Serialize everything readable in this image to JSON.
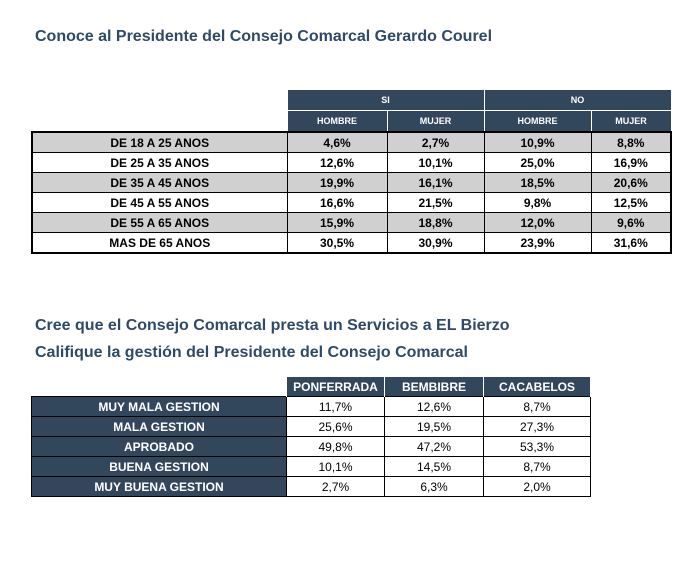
{
  "title1": "Conoce al Presidente del Consejo Comarcal Gerardo Courel",
  "table1": {
    "group_headers": [
      "SI",
      "NO"
    ],
    "sub_headers": [
      "HOMBRE",
      "MUJER",
      "HOMBRE",
      "MUJER"
    ],
    "rows": [
      {
        "label": "DE 18 A 25 ANOS",
        "values": [
          "4,6%",
          "2,7%",
          "10,9%",
          "8,8%"
        ]
      },
      {
        "label": "DE 25 A 35 ANOS",
        "values": [
          "12,6%",
          "10,1%",
          "25,0%",
          "16,9%"
        ]
      },
      {
        "label": "DE 35 A 45 ANOS",
        "values": [
          "19,9%",
          "16,1%",
          "18,5%",
          "20,6%"
        ]
      },
      {
        "label": "DE 45 A 55 ANOS",
        "values": [
          "16,6%",
          "21,5%",
          "9,8%",
          "12,5%"
        ]
      },
      {
        "label": "DE 55 A 65 ANOS",
        "values": [
          "15,9%",
          "18,8%",
          "12,0%",
          "9,6%"
        ]
      },
      {
        "label": "MAS DE 65 ANOS",
        "values": [
          "30,5%",
          "30,9%",
          "23,9%",
          "31,6%"
        ]
      }
    ]
  },
  "title2": "Cree que el Consejo Comarcal  presta un Servicios a EL Bierzo",
  "title3": "Califique la gestión del Presidente del Consejo Comarcal",
  "table2": {
    "headers": [
      "PONFERRADA",
      "BEMBIBRE",
      "CACABELOS"
    ],
    "rows": [
      {
        "label": "MUY MALA GESTION",
        "values": [
          "11,7%",
          "12,6%",
          "8,7%"
        ]
      },
      {
        "label": "MALA GESTION",
        "values": [
          "25,6%",
          "19,5%",
          "27,3%"
        ]
      },
      {
        "label": "APROBADO",
        "values": [
          "49,8%",
          "47,2%",
          "53,3%"
        ]
      },
      {
        "label": "BUENA GESTION",
        "values": [
          "10,1%",
          "14,5%",
          "8,7%"
        ]
      },
      {
        "label": "MUY BUENA GESTION",
        "values": [
          "2,7%",
          "6,3%",
          "2,0%"
        ]
      }
    ]
  }
}
